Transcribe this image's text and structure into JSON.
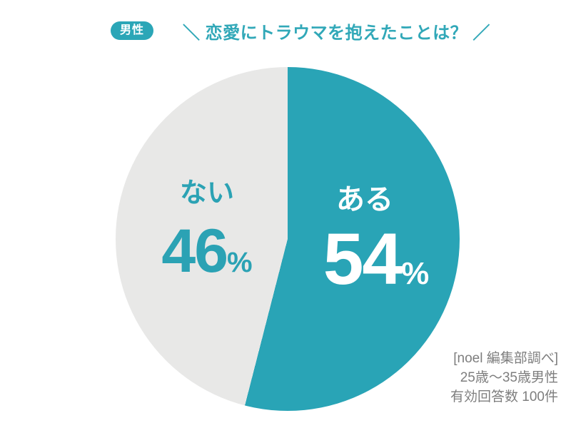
{
  "header": {
    "badge_label": "男性",
    "title": "＼ 恋愛にトラウマを抱えたことは？ ／"
  },
  "chart_data": {
    "type": "pie",
    "title": "恋愛にトラウマを抱えたことは？",
    "group": "男性",
    "categories": [
      "ある",
      "ない"
    ],
    "values": [
      54,
      46
    ],
    "unit": "%",
    "slice_colors": [
      "#29a4b6",
      "#e8e8e7"
    ],
    "label_colors": [
      "#ffffff",
      "#2ba2b4"
    ],
    "start_angle_deg": 0,
    "direction": "clockwise",
    "legend_position": "none",
    "labels_inside": true
  },
  "source": {
    "lines": [
      "[noel 編集部調べ]",
      "25歳〜35歳男性",
      "有効回答数 100件"
    ]
  },
  "colors": {
    "accent_teal": "#29a4b6",
    "slice_gray": "#e8e8e7",
    "source_text": "#7e7e7e",
    "background": "#ffffff"
  }
}
